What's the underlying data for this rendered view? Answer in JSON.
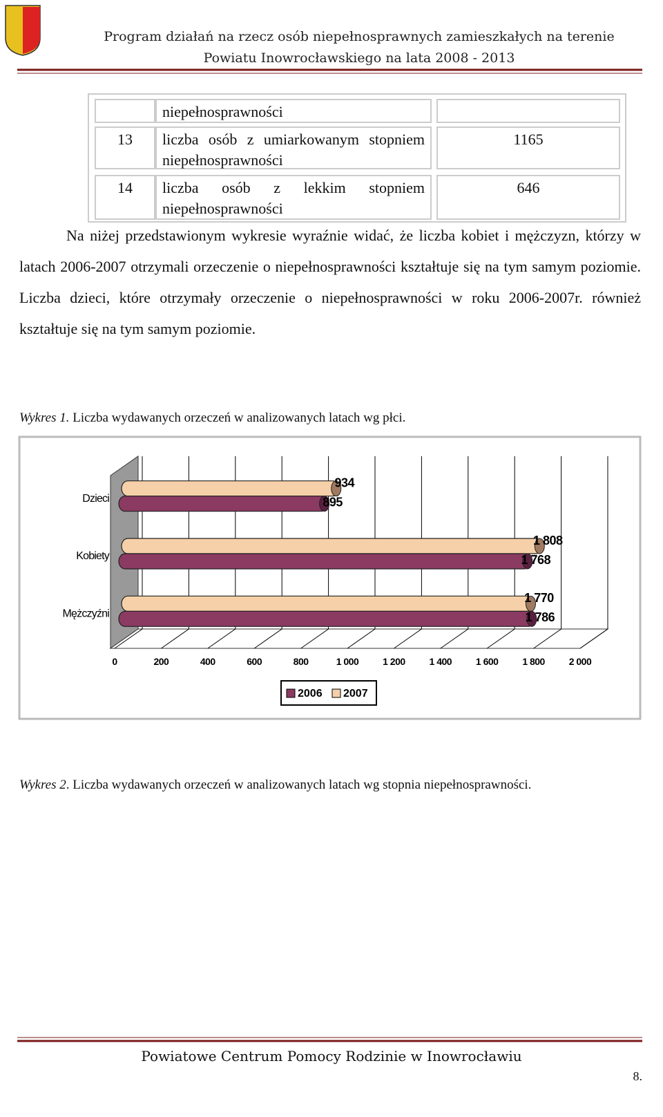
{
  "header": {
    "line1": "Program działań na rzecz osób niepełnosprawnych zamieszkałych  na terenie",
    "line2": "Powiatu Inowrocławskiego na lata 2008 - 2013"
  },
  "table": {
    "rows": [
      {
        "label": "niepełnosprawności"
      },
      {
        "number": "13",
        "label": "liczba osób z umiarkowanym stopniem niepełnosprawności",
        "value": 1165
      },
      {
        "number": "14",
        "label": "liczba osób z lekkim stopniem niepełnosprawności",
        "value": 646
      }
    ]
  },
  "paragraph": "Na niżej przedstawionym wykresie wyraźnie widać, że liczba kobiet i mężczyzn, którzy w latach 2006-2007 otrzymali orzeczenie o niepełnosprawności kształtuje się na tym samym poziomie. Liczba dzieci, które otrzymały orzeczenie o niepełnosprawności w roku 2006-2007r. również kształtuje się na tym samym poziomie.",
  "figure1": {
    "label": "Wykres  1.",
    "caption": "Liczba wydawanych orzeczeń w analizowanych latach wg płci.",
    "chart": {
      "type": "bar3d-horizontal",
      "categories": [
        "Dzieci",
        "Kobiety",
        "Mężczyźni"
      ],
      "series": [
        {
          "name": "2006",
          "color": "#8b3a62",
          "values": [
            895,
            1768,
            1786
          ],
          "value_labels": [
            "895",
            "1 768",
            "1 786"
          ]
        },
        {
          "name": "2007",
          "color": "#f6d0a8",
          "values": [
            934,
            1808,
            1770
          ],
          "value_labels": [
            "934",
            "1 808",
            "1 770"
          ]
        }
      ],
      "xlim": [
        0,
        2000
      ],
      "xticks": [
        0,
        200,
        400,
        600,
        800,
        {
          "value": 1000,
          "label": "1 000"
        },
        {
          "value": 1200,
          "label": "1 200"
        },
        {
          "value": 1400,
          "label": "1 400"
        },
        {
          "value": 1600,
          "label": "1 600"
        },
        {
          "value": 1800,
          "label": "1 800"
        },
        {
          "value": 2000,
          "label": "2 000"
        }
      ],
      "grid": true
    }
  },
  "figure2": {
    "label": "Wykres  2",
    "caption": ". Liczba wydawanych orzeczeń w analizowanych latach wg stopnia niepełnosprawności."
  },
  "footer": {
    "text": "Powiatowe Centrum Pomocy Rodzinie w Inowrocławiu",
    "page": "8."
  }
}
